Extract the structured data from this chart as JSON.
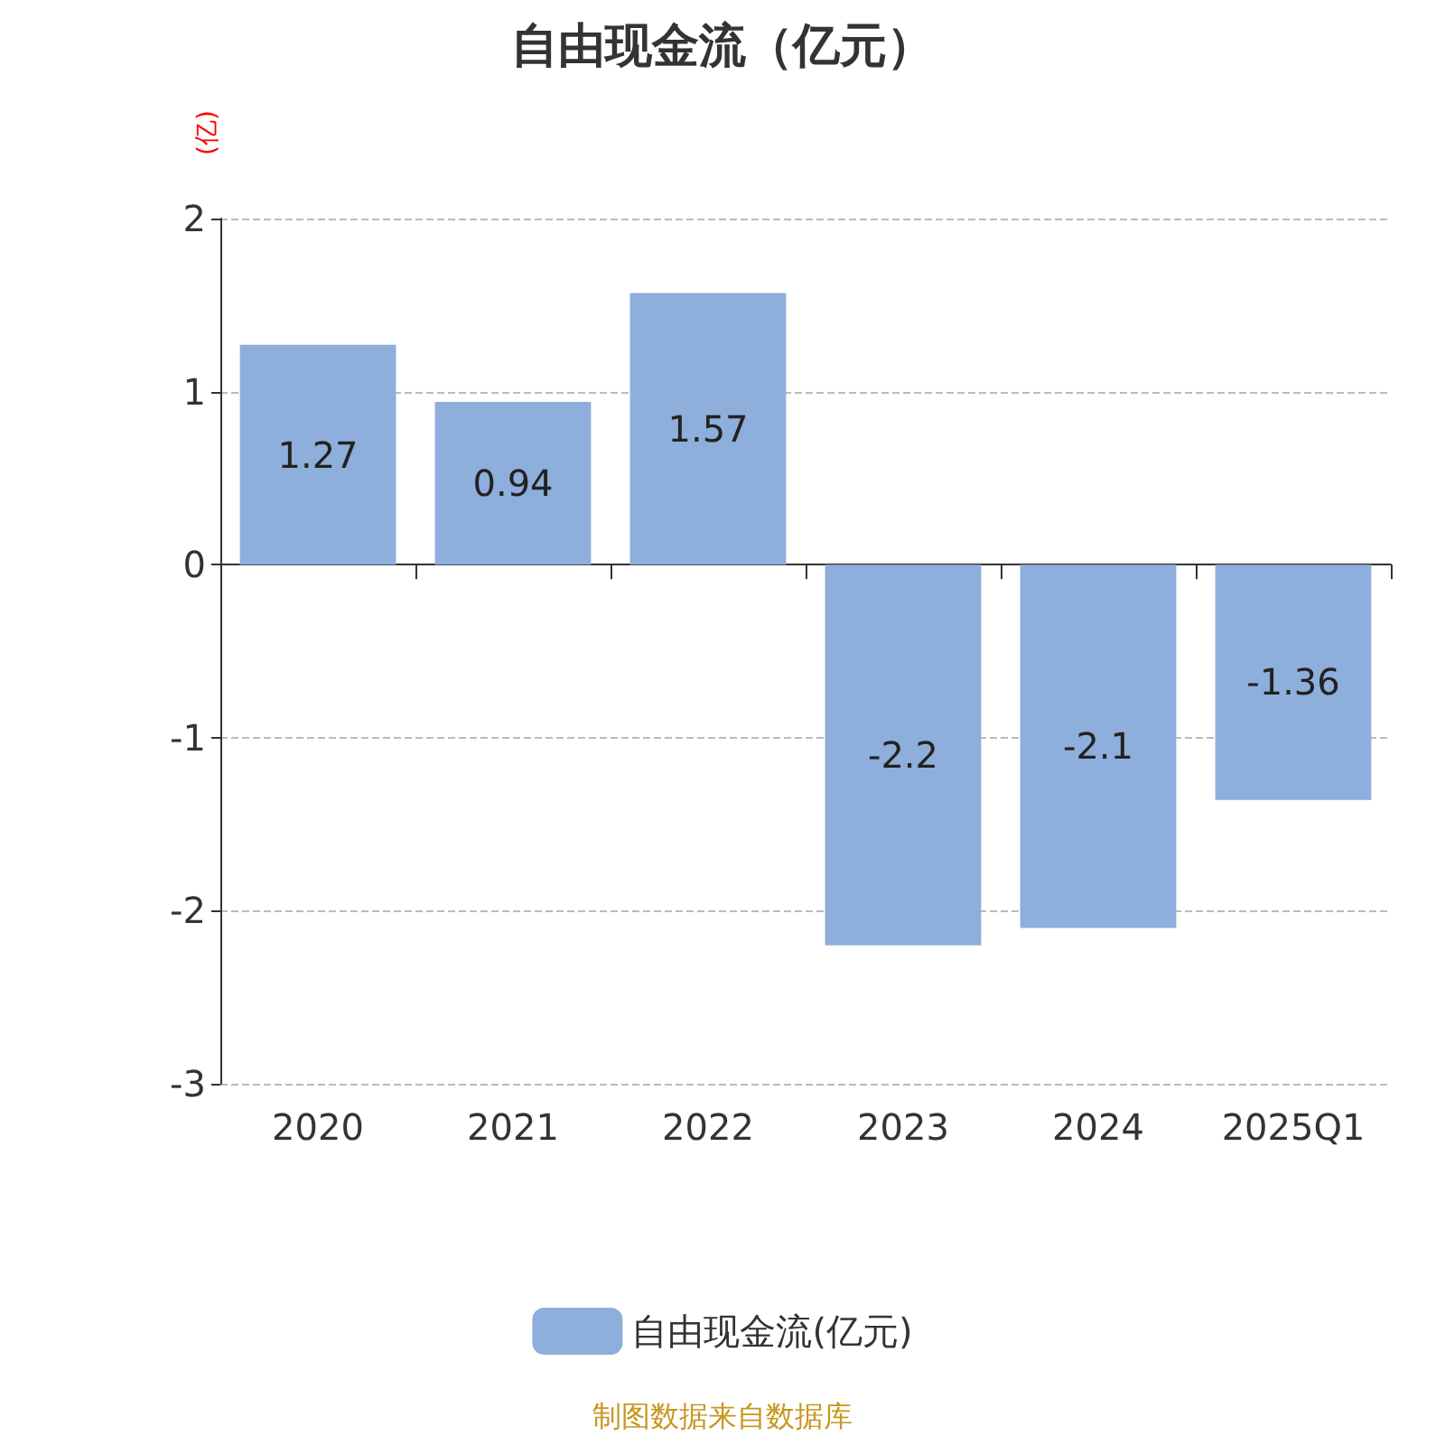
{
  "chart_data": {
    "type": "bar",
    "title": "自由现金流（亿元）",
    "ylabel": "(亿)",
    "categories": [
      "2020",
      "2021",
      "2022",
      "2023",
      "2024",
      "2025Q1"
    ],
    "series": [
      {
        "name": "自由现金流(亿元)",
        "color": "#8eaedb",
        "values": [
          1.27,
          0.94,
          1.57,
          -2.2,
          -2.1,
          -1.36
        ]
      }
    ],
    "ylim": [
      -3,
      2
    ],
    "yticks": [
      -3,
      -2,
      -1,
      0,
      1,
      2
    ],
    "grid": "y",
    "legend": "bottom",
    "data_labels": true,
    "annotations": [
      "制图数据来自数据库"
    ]
  }
}
